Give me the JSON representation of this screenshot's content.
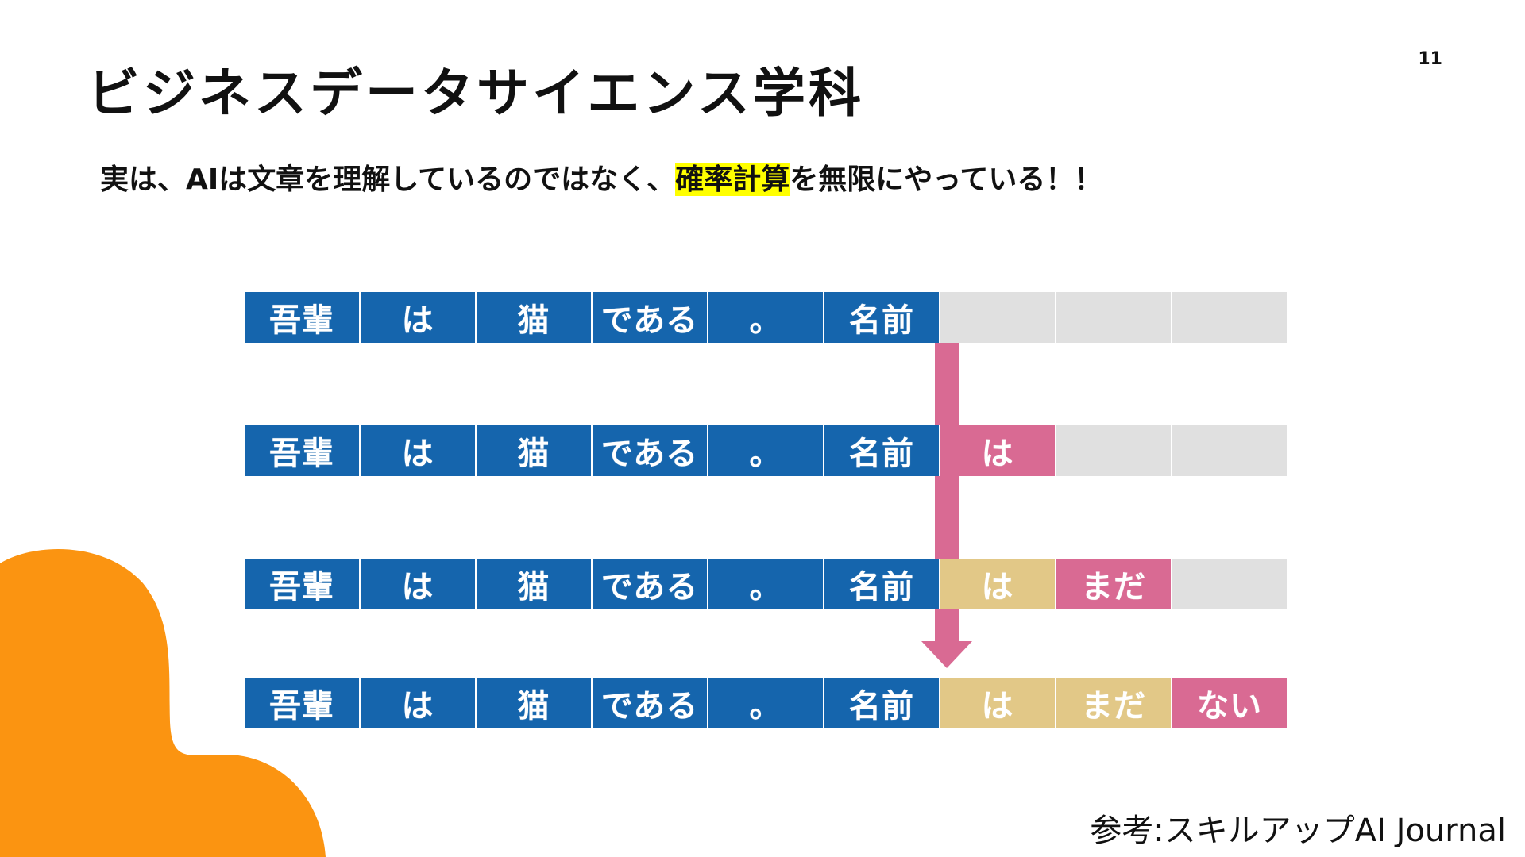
{
  "page_number": "11",
  "title": "ビジネスデータサイエンス学科",
  "subtitle": {
    "before": "実は、AIは文章を理解しているのではなく、",
    "highlight": "確率計算",
    "after": "を無限にやっている！！"
  },
  "diagram": {
    "rows": [
      {
        "cells": [
          {
            "text": "吾輩",
            "kind": "blue"
          },
          {
            "text": "は",
            "kind": "blue"
          },
          {
            "text": "猫",
            "kind": "blue"
          },
          {
            "text": "である",
            "kind": "blue"
          },
          {
            "text": "。",
            "kind": "blue"
          },
          {
            "text": "名前",
            "kind": "blue"
          },
          {
            "text": "",
            "kind": "empty"
          },
          {
            "text": "",
            "kind": "empty"
          },
          {
            "text": "",
            "kind": "empty"
          }
        ]
      },
      {
        "cells": [
          {
            "text": "吾輩",
            "kind": "blue"
          },
          {
            "text": "は",
            "kind": "blue"
          },
          {
            "text": "猫",
            "kind": "blue"
          },
          {
            "text": "である",
            "kind": "blue"
          },
          {
            "text": "。",
            "kind": "blue"
          },
          {
            "text": "名前",
            "kind": "blue"
          },
          {
            "text": "は",
            "kind": "pink"
          },
          {
            "text": "",
            "kind": "empty"
          },
          {
            "text": "",
            "kind": "empty"
          }
        ]
      },
      {
        "cells": [
          {
            "text": "吾輩",
            "kind": "blue"
          },
          {
            "text": "は",
            "kind": "blue"
          },
          {
            "text": "猫",
            "kind": "blue"
          },
          {
            "text": "である",
            "kind": "blue"
          },
          {
            "text": "。",
            "kind": "blue"
          },
          {
            "text": "名前",
            "kind": "blue"
          },
          {
            "text": "は",
            "kind": "tan"
          },
          {
            "text": "まだ",
            "kind": "pink"
          },
          {
            "text": "",
            "kind": "empty"
          }
        ]
      },
      {
        "cells": [
          {
            "text": "吾輩",
            "kind": "blue"
          },
          {
            "text": "は",
            "kind": "blue"
          },
          {
            "text": "猫",
            "kind": "blue"
          },
          {
            "text": "である",
            "kind": "blue"
          },
          {
            "text": "。",
            "kind": "blue"
          },
          {
            "text": "名前",
            "kind": "blue"
          },
          {
            "text": "は",
            "kind": "tan"
          },
          {
            "text": "まだ",
            "kind": "tan"
          },
          {
            "text": "ない",
            "kind": "pink"
          }
        ]
      }
    ],
    "colors": {
      "blue": "#1565ad",
      "pink": "#d96a93",
      "tan": "#e2c887",
      "empty": "#e0e0e0"
    }
  },
  "reference": "参考:スキルアップAI Journal",
  "decoration": {
    "blob_color": "#fb9411"
  }
}
